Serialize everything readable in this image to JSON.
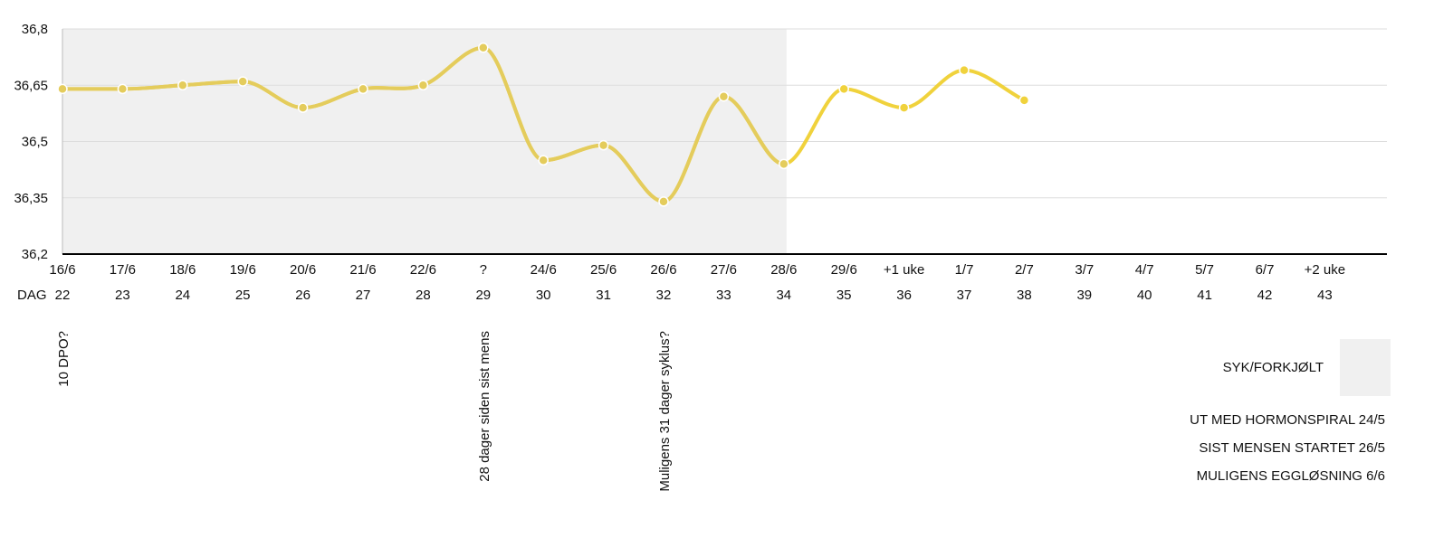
{
  "chart_data": {
    "type": "line",
    "y_ticks": [
      "36,8",
      "36,65",
      "36,5",
      "36,35",
      "36,2"
    ],
    "ylim": [
      36.2,
      36.8
    ],
    "grid": true,
    "x_labels": [
      "16/6",
      "17/6",
      "18/6",
      "19/6",
      "20/6",
      "21/6",
      "22/6",
      "?",
      "24/6",
      "25/6",
      "26/6",
      "27/6",
      "28/6",
      "29/6",
      "+1 uke",
      "1/7",
      "2/7",
      "3/7",
      "4/7",
      "5/7",
      "6/7",
      "+2 uke"
    ],
    "day_row_label": "DAG",
    "days": [
      "22",
      "23",
      "24",
      "25",
      "26",
      "27",
      "28",
      "29",
      "30",
      "31",
      "32",
      "33",
      "34",
      "35",
      "36",
      "37",
      "38",
      "39",
      "40",
      "41",
      "42",
      "43"
    ],
    "series": [
      {
        "values": [
          36.64,
          36.64,
          36.65,
          36.66,
          36.59,
          36.64,
          36.65,
          36.75,
          36.45,
          36.49,
          36.34,
          36.62,
          36.44,
          36.64,
          36.59,
          36.69,
          36.61
        ]
      }
    ],
    "shaded_range": {
      "from_index": 0,
      "to_index": 12
    },
    "annotations": [
      {
        "index": 0,
        "text": "10 DPO?"
      },
      {
        "index": 7,
        "text": "28 dager siden sist mens"
      },
      {
        "index": 10,
        "text": "Muligens  31 dager syklus?"
      }
    ],
    "legend": [
      {
        "label": "SYK/FORKJØLT",
        "color": "#f0f0f0"
      }
    ],
    "notes": [
      "UT MED HORMONSPIRAL 24/5",
      "SIST MENSEN STARTET 26/5",
      "MULIGENS EGGLØSNING 6/6"
    ],
    "colors": {
      "line_shaded": "#e4cc5c",
      "line": "#f0d23c",
      "shade": "#f0f0f0",
      "grid": "#dddddd",
      "axis": "#000000"
    }
  }
}
